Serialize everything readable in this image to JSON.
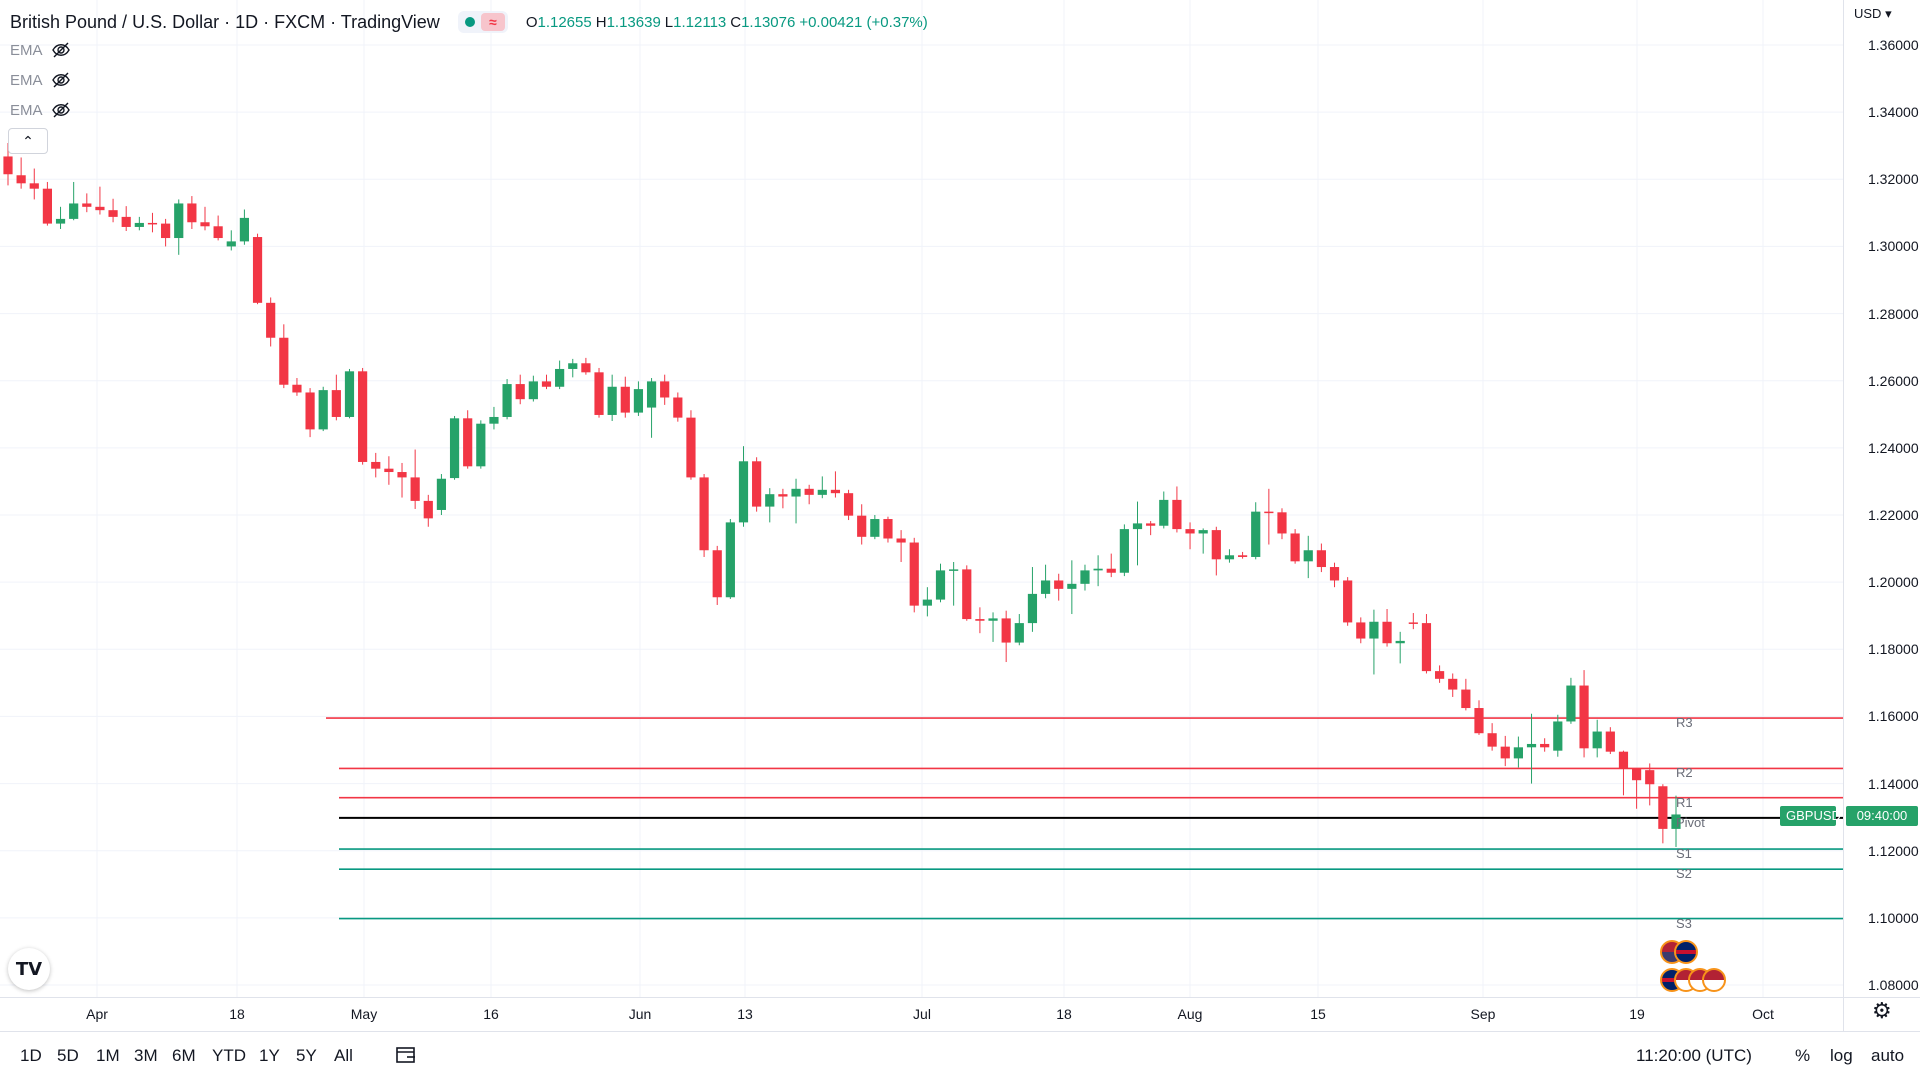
{
  "header": {
    "title": "British Pound / U.S. Dollar · 1D · FXCM · TradingView",
    "live_glyph": "≈",
    "ohlc": [
      {
        "k": "O",
        "v": "1.12655"
      },
      {
        "k": "H",
        "v": "1.13639"
      },
      {
        "k": "L",
        "v": "1.12113"
      },
      {
        "k": "C",
        "v": "1.13076"
      },
      {
        "k": "",
        "v": "+0.00421 (+0.37%)"
      }
    ]
  },
  "indicators": [
    {
      "label": "EMA",
      "icon": "eye-off-icon"
    },
    {
      "label": "EMA",
      "icon": "eye-off-icon"
    },
    {
      "label": "EMA",
      "icon": "eye-off-icon"
    }
  ],
  "collapse_glyph": "⌃",
  "price_axis": {
    "currency": "USD",
    "ticks": [
      "1.36000",
      "1.34000",
      "1.32000",
      "1.30000",
      "1.28000",
      "1.26000",
      "1.24000",
      "1.22000",
      "1.20000",
      "1.18000",
      "1.16000",
      "1.14000",
      "1.12000",
      "1.10000",
      "1.08000"
    ]
  },
  "time_axis": {
    "ticks": [
      "Apr",
      "18",
      "May",
      "16",
      "Jun",
      "13",
      "Jul",
      "18",
      "Aug",
      "15",
      "Sep",
      "19",
      "Oct"
    ]
  },
  "price_tags": {
    "symbol": "GBPUSD",
    "countdown": "09:40:00"
  },
  "pivots": [
    {
      "label": "R3",
      "value": 1.1595,
      "color": "#f23645"
    },
    {
      "label": "R2",
      "value": 1.1445,
      "color": "#f23645"
    },
    {
      "label": "R1",
      "value": 1.1358,
      "color": "#f23645"
    },
    {
      "label": "Pivot",
      "value": 1.1298,
      "color": "#000000"
    },
    {
      "label": "S1",
      "value": 1.1205,
      "color": "#089981"
    },
    {
      "label": "S2",
      "value": 1.1145,
      "color": "#089981"
    },
    {
      "label": "S3",
      "value": 1.0998,
      "color": "#089981"
    }
  ],
  "bottom_bar": {
    "timeframes": [
      "1D",
      "5D",
      "1M",
      "3M",
      "6M",
      "YTD",
      "1Y",
      "5Y",
      "All"
    ],
    "clock": "11:20:00 (UTC)",
    "percent": "%",
    "log": "log",
    "auto": "auto"
  },
  "logo_text": "TV",
  "colors": {
    "up": "#26a269",
    "down": "#f23645",
    "grid": "#f0f3fa"
  },
  "chart_data": {
    "type": "candlestick",
    "title": "British Pound / U.S. Dollar · 1D · FXCM",
    "ylim": [
      1.077,
      1.368
    ],
    "candles": [
      [
        1.3268,
        1.3308,
        1.3182,
        1.3215
      ],
      [
        1.3212,
        1.3265,
        1.3172,
        1.3188
      ],
      [
        1.3188,
        1.3232,
        1.314,
        1.3172
      ],
      [
        1.3172,
        1.3192,
        1.3062,
        1.3068
      ],
      [
        1.3068,
        1.3118,
        1.3052,
        1.3082
      ],
      [
        1.3082,
        1.3192,
        1.3078,
        1.3128
      ],
      [
        1.3128,
        1.3158,
        1.3102,
        1.3118
      ],
      [
        1.3118,
        1.3178,
        1.3095,
        1.3108
      ],
      [
        1.3108,
        1.3142,
        1.3072,
        1.3088
      ],
      [
        1.3088,
        1.312,
        1.3046,
        1.3058
      ],
      [
        1.3058,
        1.3088,
        1.3048,
        1.307
      ],
      [
        1.307,
        1.31,
        1.3042,
        1.3068
      ],
      [
        1.3068,
        1.3082,
        1.3,
        1.3025
      ],
      [
        1.3025,
        1.314,
        1.2975,
        1.3128
      ],
      [
        1.3128,
        1.315,
        1.3052,
        1.3072
      ],
      [
        1.3072,
        1.3118,
        1.3048,
        1.306
      ],
      [
        1.306,
        1.3092,
        1.3018,
        1.3025
      ],
      [
        1.3,
        1.3048,
        1.2988,
        1.3015
      ],
      [
        1.3015,
        1.311,
        1.3005,
        1.3085
      ],
      [
        1.3028,
        1.3038,
        1.2828,
        1.2832
      ],
      [
        1.2832,
        1.2848,
        1.2702,
        1.2728
      ],
      [
        1.2728,
        1.2768,
        1.2578,
        1.2588
      ],
      [
        1.2588,
        1.2608,
        1.2555,
        1.2565
      ],
      [
        1.2565,
        1.2578,
        1.2432,
        1.2455
      ],
      [
        1.2455,
        1.2582,
        1.245,
        1.2572
      ],
      [
        1.2572,
        1.2618,
        1.2482,
        1.2492
      ],
      [
        1.2492,
        1.2635,
        1.2488,
        1.2628
      ],
      [
        1.2628,
        1.2638,
        1.235,
        1.2358
      ],
      [
        1.2358,
        1.2385,
        1.2312,
        1.2338
      ],
      [
        1.2338,
        1.2375,
        1.229,
        1.2328
      ],
      [
        1.2328,
        1.2355,
        1.2252,
        1.2312
      ],
      [
        1.2312,
        1.2395,
        1.2218,
        1.2242
      ],
      [
        1.2242,
        1.226,
        1.2165,
        1.219
      ],
      [
        1.2215,
        1.2322,
        1.22,
        1.2308
      ],
      [
        1.231,
        1.2495,
        1.2305,
        1.2488
      ],
      [
        1.2488,
        1.2512,
        1.2338,
        1.2345
      ],
      [
        1.2345,
        1.2482,
        1.2338,
        1.2472
      ],
      [
        1.2472,
        1.2522,
        1.2455,
        1.2492
      ],
      [
        1.2492,
        1.2605,
        1.2485,
        1.259
      ],
      [
        1.259,
        1.2618,
        1.253,
        1.2545
      ],
      [
        1.2545,
        1.2615,
        1.2538,
        1.2598
      ],
      [
        1.2598,
        1.2618,
        1.2575,
        1.2582
      ],
      [
        1.2582,
        1.266,
        1.2575,
        1.2635
      ],
      [
        1.2635,
        1.2665,
        1.261,
        1.2652
      ],
      [
        1.2652,
        1.2668,
        1.2618,
        1.2625
      ],
      [
        1.2625,
        1.2638,
        1.249,
        1.2498
      ],
      [
        1.2498,
        1.2618,
        1.248,
        1.2582
      ],
      [
        1.2582,
        1.2612,
        1.249,
        1.2505
      ],
      [
        1.2505,
        1.2598,
        1.2495,
        1.2575
      ],
      [
        1.252,
        1.2608,
        1.243,
        1.2598
      ],
      [
        1.2598,
        1.2618,
        1.2528,
        1.255
      ],
      [
        1.255,
        1.2565,
        1.2478,
        1.249
      ],
      [
        1.249,
        1.2512,
        1.2305,
        1.2312
      ],
      [
        1.2312,
        1.2322,
        1.2075,
        1.2095
      ],
      [
        1.2095,
        1.2108,
        1.1932,
        1.1955
      ],
      [
        1.1955,
        1.2188,
        1.195,
        1.2178
      ],
      [
        1.2178,
        1.2405,
        1.2165,
        1.236
      ],
      [
        1.236,
        1.2372,
        1.221,
        1.2225
      ],
      [
        1.2225,
        1.228,
        1.2178,
        1.2262
      ],
      [
        1.2262,
        1.2278,
        1.222,
        1.2255
      ],
      [
        1.2255,
        1.2308,
        1.2175,
        1.2278
      ],
      [
        1.2278,
        1.229,
        1.2232,
        1.226
      ],
      [
        1.226,
        1.2315,
        1.225,
        1.2275
      ],
      [
        1.2275,
        1.233,
        1.2252,
        1.2265
      ],
      [
        1.2265,
        1.2275,
        1.2185,
        1.2198
      ],
      [
        1.2198,
        1.2232,
        1.2112,
        1.2135
      ],
      [
        1.2135,
        1.22,
        1.2128,
        1.2188
      ],
      [
        1.2188,
        1.2195,
        1.2118,
        1.213
      ],
      [
        1.213,
        1.2155,
        1.206,
        1.2118
      ],
      [
        1.2118,
        1.2132,
        1.191,
        1.193
      ],
      [
        1.193,
        1.1985,
        1.1898,
        1.1948
      ],
      [
        1.1948,
        1.2055,
        1.194,
        1.2035
      ],
      [
        1.2035,
        1.206,
        1.193,
        1.2038
      ],
      [
        1.2038,
        1.205,
        1.1885,
        1.189
      ],
      [
        1.189,
        1.1925,
        1.1848,
        1.1885
      ],
      [
        1.1885,
        1.191,
        1.1822,
        1.1892
      ],
      [
        1.1892,
        1.1915,
        1.1762,
        1.182
      ],
      [
        1.182,
        1.1905,
        1.1812,
        1.1878
      ],
      [
        1.1878,
        1.2045,
        1.1852,
        1.1965
      ],
      [
        1.1965,
        1.2052,
        1.1952,
        1.2005
      ],
      [
        1.2005,
        1.2025,
        1.1945,
        1.198
      ],
      [
        1.198,
        1.2065,
        1.1905,
        1.1995
      ],
      [
        1.1995,
        1.2052,
        1.1975,
        1.2035
      ],
      [
        1.2035,
        1.208,
        1.1988,
        1.204
      ],
      [
        1.204,
        1.2085,
        1.2015,
        1.2028
      ],
      [
        1.2028,
        1.2172,
        1.2018,
        1.2158
      ],
      [
        1.2158,
        1.224,
        1.205,
        1.2175
      ],
      [
        1.2175,
        1.2182,
        1.214,
        1.2168
      ],
      [
        1.2168,
        1.227,
        1.216,
        1.2245
      ],
      [
        1.2245,
        1.2285,
        1.2148,
        1.2158
      ],
      [
        1.2158,
        1.2178,
        1.2098,
        1.2145
      ],
      [
        1.2145,
        1.216,
        1.2085,
        1.2155
      ],
      [
        1.2155,
        1.2165,
        1.202,
        1.2068
      ],
      [
        1.2068,
        1.2098,
        1.2058,
        1.208
      ],
      [
        1.208,
        1.209,
        1.207,
        1.2075
      ],
      [
        1.2075,
        1.2238,
        1.2068,
        1.221
      ],
      [
        1.221,
        1.2278,
        1.2112,
        1.2208
      ],
      [
        1.2208,
        1.222,
        1.2128,
        1.2145
      ],
      [
        1.2145,
        1.2158,
        1.2055,
        1.2062
      ],
      [
        1.2062,
        1.2138,
        1.2012,
        1.2095
      ],
      [
        1.2095,
        1.2115,
        1.203,
        1.2045
      ],
      [
        1.2045,
        1.2058,
        1.1985,
        1.2005
      ],
      [
        1.2005,
        1.2015,
        1.187,
        1.188
      ],
      [
        1.188,
        1.1895,
        1.1818,
        1.1832
      ],
      [
        1.1832,
        1.1918,
        1.1725,
        1.1882
      ],
      [
        1.1882,
        1.192,
        1.1808,
        1.1818
      ],
      [
        1.1818,
        1.1852,
        1.1758,
        1.1825
      ],
      [
        1.188,
        1.1908,
        1.186,
        1.1878
      ],
      [
        1.1878,
        1.1905,
        1.1728,
        1.1735
      ],
      [
        1.1735,
        1.1752,
        1.17,
        1.1712
      ],
      [
        1.1712,
        1.1728,
        1.1658,
        1.168
      ],
      [
        1.168,
        1.1712,
        1.1618,
        1.1625
      ],
      [
        1.1625,
        1.1648,
        1.1545,
        1.155
      ],
      [
        1.155,
        1.158,
        1.1498,
        1.151
      ],
      [
        1.151,
        1.1542,
        1.1452,
        1.1475
      ],
      [
        1.1475,
        1.154,
        1.1448,
        1.1508
      ],
      [
        1.1508,
        1.1608,
        1.14,
        1.1518
      ],
      [
        1.1518,
        1.1535,
        1.1495,
        1.1508
      ],
      [
        1.1498,
        1.1605,
        1.148,
        1.1585
      ],
      [
        1.1585,
        1.1715,
        1.1578,
        1.1692
      ],
      [
        1.1692,
        1.1738,
        1.1478,
        1.1505
      ],
      [
        1.1505,
        1.159,
        1.1478,
        1.1555
      ],
      [
        1.1555,
        1.1568,
        1.1488,
        1.1495
      ],
      [
        1.1495,
        1.1498,
        1.1365,
        1.1445
      ],
      [
        1.1445,
        1.1442,
        1.1325,
        1.141
      ],
      [
        1.144,
        1.146,
        1.1335,
        1.1398
      ],
      [
        1.1392,
        1.1398,
        1.1222,
        1.1265
      ],
      [
        1.1265,
        1.1364,
        1.1211,
        1.1308
      ]
    ]
  }
}
